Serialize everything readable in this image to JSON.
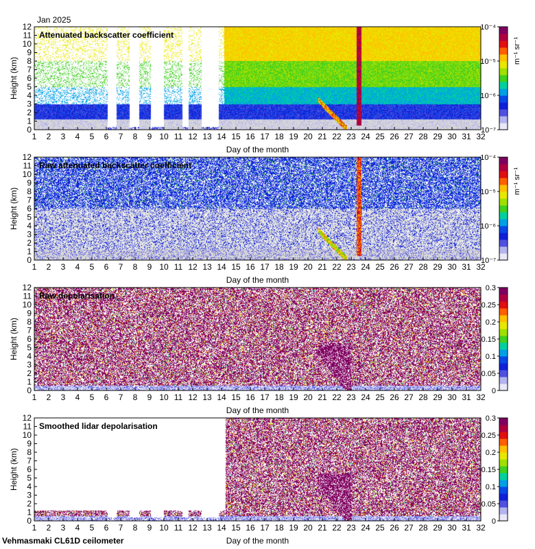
{
  "header": {
    "date_label": "Jan 2025"
  },
  "footer": {
    "instrument": "Vehmasmaki CL61D ceilometer"
  },
  "colors": {
    "rainbow": [
      "#e8e8f8",
      "#b4b4ee",
      "#5050e0",
      "#1020d8",
      "#0a48e6",
      "#00a0e6",
      "#00d0a0",
      "#40d020",
      "#a0e000",
      "#e8e800",
      "#ffc000",
      "#ff6000",
      "#e01010",
      "#b00040",
      "#800060"
    ],
    "background_gray": "#d8d8d8"
  },
  "chart_data": [
    {
      "type": "heatmap",
      "title": "Attenuated backscatter coefficient",
      "xlabel": "Day of the month",
      "ylabel": "Height (km)",
      "x_ticks": [
        "1",
        "2",
        "3",
        "4",
        "5",
        "6",
        "7",
        "8",
        "9",
        "10",
        "11",
        "12",
        "13",
        "14",
        "15",
        "16",
        "17",
        "18",
        "19",
        "20",
        "21",
        "22",
        "23",
        "24",
        "25",
        "26",
        "27",
        "28",
        "29",
        "30",
        "31",
        "32"
      ],
      "y_ticks": [
        "0",
        "1",
        "2",
        "3",
        "4",
        "5",
        "6",
        "7",
        "8",
        "9",
        "10",
        "11",
        "12"
      ],
      "xlim": [
        1,
        32
      ],
      "ylim": [
        0,
        12
      ],
      "colorbar": {
        "scale": "log",
        "ticks": [
          "10⁻⁷",
          "10⁻⁶",
          "10⁻⁵",
          "10⁻⁴"
        ],
        "units": "m⁻¹ sr⁻¹",
        "range": [
          1e-07,
          0.0001
        ]
      },
      "mode": "att",
      "no_data_days": [
        [
          6.1,
          6.7
        ],
        [
          7.6,
          8.3
        ],
        [
          9.1,
          10.0
        ],
        [
          11.3,
          11.7
        ],
        [
          12.6,
          13.8
        ]
      ],
      "seed": 11
    },
    {
      "type": "heatmap",
      "title": "Raw attenuated backscatter coefficient",
      "xlabel": "Day of the month",
      "ylabel": "Height (km)",
      "x_ticks": [
        "1",
        "2",
        "3",
        "4",
        "5",
        "6",
        "7",
        "8",
        "9",
        "10",
        "11",
        "12",
        "13",
        "14",
        "15",
        "16",
        "17",
        "18",
        "19",
        "20",
        "21",
        "22",
        "23",
        "24",
        "25",
        "26",
        "27",
        "28",
        "29",
        "30",
        "31",
        "32"
      ],
      "y_ticks": [
        "0",
        "1",
        "2",
        "3",
        "4",
        "5",
        "6",
        "7",
        "8",
        "9",
        "10",
        "11",
        "12"
      ],
      "xlim": [
        1,
        32
      ],
      "ylim": [
        0,
        12
      ],
      "colorbar": {
        "scale": "log",
        "ticks": [
          "10⁻⁷",
          "10⁻⁶",
          "10⁻⁵",
          "10⁻⁴"
        ],
        "units": "m⁻¹ sr⁻¹",
        "range": [
          1e-07,
          0.0001
        ]
      },
      "mode": "raw",
      "no_data_days": [],
      "seed": 23
    },
    {
      "type": "heatmap",
      "title": "Raw depolarisation",
      "xlabel": "Day of the month",
      "ylabel": "Height (km)",
      "x_ticks": [
        "1",
        "2",
        "3",
        "4",
        "5",
        "6",
        "7",
        "8",
        "9",
        "10",
        "11",
        "12",
        "13",
        "14",
        "15",
        "16",
        "17",
        "18",
        "19",
        "20",
        "21",
        "22",
        "23",
        "24",
        "25",
        "26",
        "27",
        "28",
        "29",
        "30",
        "31",
        "32"
      ],
      "y_ticks": [
        "0",
        "1",
        "2",
        "3",
        "4",
        "5",
        "6",
        "7",
        "8",
        "9",
        "10",
        "11",
        "12"
      ],
      "xlim": [
        1,
        32
      ],
      "ylim": [
        0,
        12
      ],
      "colorbar": {
        "scale": "linear",
        "ticks": [
          "0",
          "0.05",
          "0.1",
          "0.15",
          "0.2",
          "0.25",
          "0.3"
        ],
        "units": "",
        "range": [
          0,
          0.3
        ]
      },
      "mode": "depol",
      "no_data_days": [],
      "seed": 37
    },
    {
      "type": "heatmap",
      "title": "Smoothed lidar depolarisation",
      "xlabel": "Day of the month",
      "ylabel": "Height (km)",
      "x_ticks": [
        "1",
        "2",
        "3",
        "4",
        "5",
        "6",
        "7",
        "8",
        "9",
        "10",
        "11",
        "12",
        "13",
        "14",
        "15",
        "16",
        "17",
        "18",
        "19",
        "20",
        "21",
        "22",
        "23",
        "24",
        "25",
        "26",
        "27",
        "28",
        "29",
        "30",
        "31",
        "32"
      ],
      "y_ticks": [
        "0",
        "1",
        "2",
        "3",
        "4",
        "5",
        "6",
        "7",
        "8",
        "9",
        "10",
        "11",
        "12"
      ],
      "xlim": [
        1,
        32
      ],
      "ylim": [
        0,
        12
      ],
      "colorbar": {
        "scale": "linear",
        "ticks": [
          "0",
          "0.05",
          "0.1",
          "0.15",
          "0.2",
          "0.25",
          "0.3"
        ],
        "units": "",
        "range": [
          0,
          0.3
        ]
      },
      "mode": "sdepol",
      "no_data_days": [
        [
          6.1,
          6.7
        ],
        [
          7.6,
          8.3
        ],
        [
          9.1,
          10.0
        ],
        [
          11.3,
          11.7
        ],
        [
          12.6,
          13.8
        ]
      ],
      "seed": 51
    }
  ]
}
